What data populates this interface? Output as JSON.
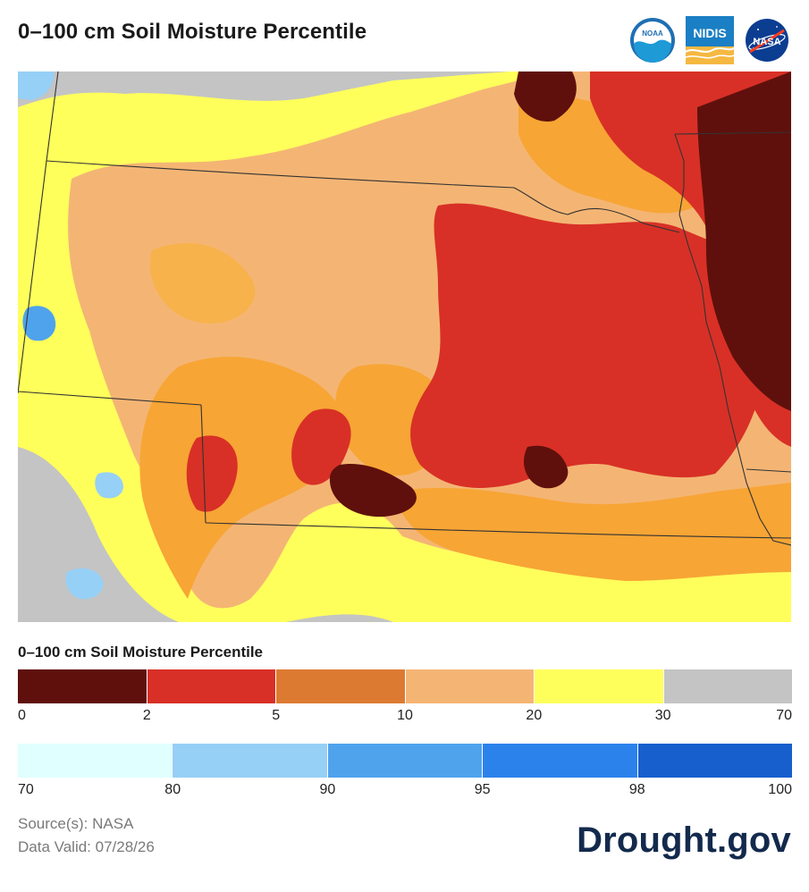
{
  "header": {
    "title": "0–100 cm Soil Moisture Percentile",
    "logos": [
      {
        "name": "noaa-logo",
        "text": "NOAA"
      },
      {
        "name": "nidis-logo",
        "text": "NIDIS"
      },
      {
        "name": "nasa-logo",
        "text": "NASA"
      }
    ]
  },
  "legend": {
    "title": "0–100 cm Soil Moisture Percentile",
    "dry_colors": [
      "#5f100c",
      "#d83026",
      "#dd7a31",
      "#f4b574",
      "#ffff5c",
      "#c4c4c4"
    ],
    "dry_ticks": [
      "0",
      "2",
      "5",
      "10",
      "20",
      "30",
      "70"
    ],
    "wet_colors": [
      "#e0ffff",
      "#96d0f6",
      "#4fa3ec",
      "#2c82eb",
      "#175fcd"
    ],
    "wet_ticks": [
      "70",
      "80",
      "90",
      "95",
      "98",
      "100"
    ]
  },
  "footer": {
    "source": "Source(s): NASA",
    "valid": "Data Valid: 07/28/26",
    "brand": "Drought.gov"
  }
}
